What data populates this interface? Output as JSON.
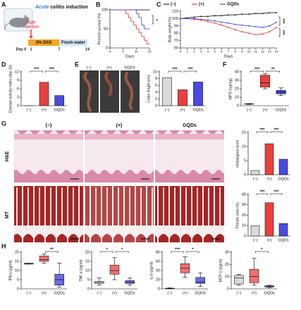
{
  "panel_labels": [
    "A",
    "B",
    "C",
    "D",
    "E",
    "F",
    "G",
    "H"
  ],
  "panel_a": {
    "title_parts": [
      "Acute",
      "colitis induction"
    ],
    "injection": [
      "GQD",
      "injection"
    ],
    "dss": "3% DSS",
    "water": "Fresh water",
    "days": [
      "Day 0",
      "1",
      "7",
      "14"
    ]
  },
  "panel_e": {
    "image_labels": [
      "(−)",
      "(+)",
      "GQDs"
    ]
  },
  "panel_g": {
    "columns": [
      "(−)",
      "(+)",
      "GQDs"
    ],
    "rows": [
      "H&E",
      "MT"
    ]
  },
  "chart_data": [
    {
      "type": "step",
      "ylabel": "Percent survival (%)",
      "xlabel": "Days",
      "x": [
        0,
        1,
        2,
        3,
        4,
        5,
        6,
        7,
        8,
        9,
        10,
        11,
        12,
        13,
        14,
        15
      ],
      "series": [
        {
          "name": "(−)",
          "color": "#222222",
          "values": [
            100,
            100,
            100,
            100,
            100,
            100,
            100,
            100,
            100,
            100,
            100,
            100,
            100,
            100,
            100,
            100
          ]
        },
        {
          "name": "(+)",
          "color": "#e8403f",
          "values": [
            100,
            100,
            100,
            100,
            100,
            100,
            90,
            80,
            70,
            60,
            50,
            40,
            30,
            20,
            10,
            10
          ]
        },
        {
          "name": "GQDs",
          "color": "#4a4adf",
          "values": [
            100,
            100,
            100,
            100,
            100,
            100,
            100,
            100,
            100,
            100,
            90,
            80,
            60,
            50,
            50,
            50
          ]
        }
      ],
      "xlim": [
        0,
        15
      ],
      "xticks": [
        0,
        5,
        10,
        15
      ],
      "ylim": [
        0,
        100
      ],
      "yticks": [
        0,
        50,
        100
      ],
      "annotations": [
        "*"
      ]
    },
    {
      "type": "line",
      "ylabel": "Body weight (%)",
      "xlabel": "Days",
      "legend": true,
      "x": [
        0,
        1,
        2,
        3,
        4,
        5,
        6,
        7,
        8,
        9,
        10,
        11,
        12,
        13,
        14
      ],
      "series": [
        {
          "name": "(−)",
          "color": "#222222",
          "values": [
            100,
            101,
            102,
            103,
            103,
            104,
            104,
            105,
            105,
            106,
            106,
            107,
            107,
            108,
            108
          ]
        },
        {
          "name": "(+)",
          "color": "#e8403f",
          "values": [
            100,
            100,
            99,
            98,
            96,
            94,
            91,
            88,
            85,
            82,
            80,
            78,
            79,
            82,
            88
          ]
        },
        {
          "name": "GQDs",
          "color": "#4a4adf",
          "values": [
            100,
            100,
            100,
            99,
            98,
            97,
            95,
            94,
            92,
            91,
            90,
            89,
            88,
            90,
            95
          ]
        }
      ],
      "xlim": [
        0,
        14
      ],
      "xticks": [
        0,
        1,
        2,
        3,
        4,
        5,
        6,
        7,
        8,
        9,
        10,
        11,
        12,
        13,
        14
      ],
      "ylim": [
        60,
        110
      ],
      "yticks": [
        60,
        70,
        80,
        90,
        100,
        110
      ],
      "annotations": [
        "***",
        "***"
      ]
    },
    {
      "type": "bar",
      "ylabel": "Disease activity index (day 10)",
      "categories": [
        "(−)",
        "(+)",
        "GQDs"
      ],
      "values": [
        0,
        8.3,
        3.6
      ],
      "colors": [
        "#d9d9d9",
        "#e8403f",
        "#4a4adf"
      ],
      "ylim": [
        0,
        12
      ],
      "yticks": [
        0,
        3,
        6,
        9,
        12
      ],
      "significance": [
        "***",
        "***"
      ]
    },
    {
      "type": "bar",
      "ylabel": "Colon length (cm)",
      "categories": [
        "(−)",
        "(+)",
        "GQDs"
      ],
      "values": [
        8.3,
        4.7,
        7.0
      ],
      "colors": [
        "#d9d9d9",
        "#e8403f",
        "#4a4adf"
      ],
      "ylim": [
        0,
        10
      ],
      "yticks": [
        0,
        2,
        4,
        6,
        8,
        10
      ],
      "significance": [
        "***",
        "***"
      ]
    },
    {
      "type": "box",
      "ylabel": "MPO (ng/mg)",
      "categories": [
        "(−)",
        "(+)",
        "GQDs"
      ],
      "min": [
        1.5,
        20,
        12
      ],
      "q1": [
        1.8,
        22,
        14
      ],
      "median": [
        2,
        27,
        16
      ],
      "q3": [
        2.2,
        36,
        18
      ],
      "max": [
        2.5,
        38,
        21
      ],
      "colors": [
        "#d9d9d9",
        "#e8403f",
        "#4a4adf"
      ],
      "ylim": [
        0,
        40
      ],
      "yticks": [
        0,
        10,
        20,
        30,
        40
      ],
      "significance": [
        "***",
        "**"
      ]
    },
    {
      "type": "bar",
      "ylabel": "Histological score",
      "categories": [
        "(−)",
        "(+)",
        "GQDs"
      ],
      "values": [
        1.5,
        11,
        5.5
      ],
      "colors": [
        "#d9d9d9",
        "#e8403f",
        "#4a4adf"
      ],
      "ylim": [
        0,
        15
      ],
      "yticks": [
        0,
        5,
        10,
        15
      ],
      "significance": [
        "***",
        "***"
      ]
    },
    {
      "type": "bar",
      "ylabel": "Fibrotic area (%)",
      "categories": [
        "(−)",
        "(+)",
        "GQDs"
      ],
      "values": [
        10,
        32,
        12
      ],
      "colors": [
        "#d9d9d9",
        "#e8403f",
        "#4a4adf"
      ],
      "ylim": [
        0,
        40
      ],
      "yticks": [
        0,
        10,
        20,
        30,
        40
      ],
      "significance": [
        "***",
        "***"
      ]
    },
    {
      "type": "box",
      "ylabel": "IFN-γ (pg/ml)",
      "categories": [
        "(−)",
        "(+)",
        "GQDs"
      ],
      "min": [
        13.5,
        14,
        1
      ],
      "q1": [
        13.5,
        15,
        2
      ],
      "median": [
        13.8,
        16,
        5
      ],
      "q3": [
        14,
        18,
        8
      ],
      "max": [
        14,
        19,
        14
      ],
      "colors": [
        "#d9d9d9",
        "#f07070",
        "#6a6ae8"
      ],
      "ylim": [
        0,
        20
      ],
      "yticks": [
        0,
        5,
        10,
        15,
        20
      ],
      "significance": [
        null,
        "**"
      ]
    },
    {
      "type": "box",
      "ylabel": "TNF-α (pg/ml)",
      "categories": [
        "(−)",
        "(+)",
        "GQDs"
      ],
      "min": [
        2,
        5,
        2
      ],
      "q1": [
        3,
        8,
        3
      ],
      "median": [
        3.5,
        10,
        3.5
      ],
      "q3": [
        4,
        13,
        4.5
      ],
      "max": [
        6,
        17,
        6
      ],
      "colors": [
        "#d9d9d9",
        "#f07070",
        "#6a6ae8"
      ],
      "ylim": [
        0,
        20
      ],
      "yticks": [
        0,
        5,
        10,
        15,
        20
      ],
      "significance": [
        "*",
        "*"
      ]
    },
    {
      "type": "box",
      "ylabel": "IL-6 (pg/ml)",
      "categories": [
        "(−)",
        "(+)",
        "GQDs"
      ],
      "min": [
        0.5,
        25,
        5
      ],
      "q1": [
        1,
        35,
        12
      ],
      "median": [
        1,
        45,
        15
      ],
      "q3": [
        1.5,
        55,
        25
      ],
      "max": [
        2,
        70,
        35
      ],
      "colors": [
        "#d9d9d9",
        "#f07070",
        "#6a6ae8"
      ],
      "ylim": [
        0,
        80
      ],
      "yticks": [
        0,
        20,
        40,
        60,
        80
      ],
      "significance": [
        "***",
        "*"
      ]
    },
    {
      "type": "box",
      "ylabel": "MCP-1 (pg/ml)",
      "categories": [
        "(−)",
        "(+)",
        "GQDs"
      ],
      "min": [
        3,
        3,
        1
      ],
      "q1": [
        4,
        5,
        1.5
      ],
      "median": [
        9,
        10,
        2
      ],
      "q3": [
        11,
        16,
        2.5
      ],
      "max": [
        12,
        25,
        3
      ],
      "colors": [
        "#d9d9d9",
        "#f07070",
        "#6a6ae8"
      ],
      "ylim": [
        0,
        30
      ],
      "yticks": [
        0,
        10,
        20,
        30
      ],
      "significance": [
        null,
        "*"
      ]
    }
  ]
}
